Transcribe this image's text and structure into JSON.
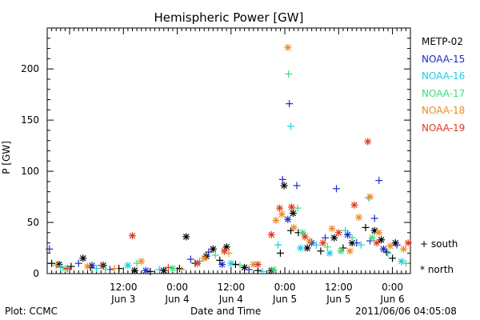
{
  "footer": {
    "left": "Plot: CCMC",
    "center": "Date and Time",
    "right": "2011/06/06 04:05:08"
  },
  "hemisphere_legend": {
    "south": "+ south",
    "north": "* north"
  },
  "chart_data": {
    "type": "scatter",
    "title": "Hemispheric Power [GW]",
    "xlabel": "Date and Time",
    "ylabel": "P [GW]",
    "xlim": [
      "2011-06-02T19:00",
      "2011-06-06T04:00"
    ],
    "ylim": [
      0,
      240
    ],
    "yticks": [
      0,
      50,
      100,
      150,
      200
    ],
    "xticks": [
      {
        "x": "2011-06-03T12:00",
        "label1": "12:00",
        "label2": "Jun 3"
      },
      {
        "x": "2011-06-04T00:00",
        "label1": "0:00",
        "label2": "Jun 4"
      },
      {
        "x": "2011-06-04T12:00",
        "label1": "12:00",
        "label2": "Jun 4"
      },
      {
        "x": "2011-06-05T00:00",
        "label1": "0:00",
        "label2": "Jun 5"
      },
      {
        "x": "2011-06-05T12:00",
        "label1": "12:00",
        "label2": "Jun 5"
      },
      {
        "x": "2011-06-06T00:00",
        "label1": "0:00",
        "label2": "Jun 6"
      }
    ],
    "grid": false,
    "legend_position": "right",
    "series": [
      {
        "name": "METP-02",
        "color": "#000000",
        "points": [
          [
            "2011-06-02T20:00",
            10,
            "+"
          ],
          [
            "2011-06-02T21:40",
            9,
            "*"
          ],
          [
            "2011-06-03T00:20",
            7,
            "+"
          ],
          [
            "2011-06-03T03:00",
            15,
            "*"
          ],
          [
            "2011-06-03T04:40",
            6,
            "+"
          ],
          [
            "2011-06-03T07:30",
            8,
            "*"
          ],
          [
            "2011-06-03T11:00",
            5,
            "+"
          ],
          [
            "2011-06-03T14:30",
            3,
            "*"
          ],
          [
            "2011-06-03T18:00",
            2,
            "+"
          ],
          [
            "2011-06-03T21:00",
            3,
            "*"
          ],
          [
            "2011-06-04T00:30",
            5,
            "+"
          ],
          [
            "2011-06-04T02:00",
            36,
            "*"
          ],
          [
            "2011-06-04T04:00",
            10,
            "+"
          ],
          [
            "2011-06-04T06:30",
            17,
            "*"
          ],
          [
            "2011-06-04T08:00",
            24,
            "*"
          ],
          [
            "2011-06-04T09:30",
            13,
            "+"
          ],
          [
            "2011-06-04T11:00",
            26,
            "*"
          ],
          [
            "2011-06-04T13:00",
            9,
            "+"
          ],
          [
            "2011-06-04T15:00",
            6,
            "*"
          ],
          [
            "2011-06-04T18:00",
            3,
            "+"
          ],
          [
            "2011-06-04T21:00",
            3,
            "*"
          ],
          [
            "2011-06-04T23:00",
            20,
            "+"
          ],
          [
            "2011-06-04T23:50",
            86,
            "*"
          ],
          [
            "2011-06-05T01:20",
            42,
            "+"
          ],
          [
            "2011-06-05T01:50",
            59,
            "*"
          ],
          [
            "2011-06-05T03:00",
            40,
            "+"
          ],
          [
            "2011-06-05T05:00",
            25,
            "*"
          ],
          [
            "2011-06-05T08:00",
            22,
            "+"
          ],
          [
            "2011-06-05T11:00",
            35,
            "*"
          ],
          [
            "2011-06-05T13:00",
            25,
            "+"
          ],
          [
            "2011-06-05T15:00",
            30,
            "*"
          ],
          [
            "2011-06-05T18:00",
            45,
            "+"
          ],
          [
            "2011-06-05T20:00",
            42,
            "*"
          ],
          [
            "2011-06-05T21:30",
            33,
            "*"
          ],
          [
            "2011-06-05T22:40",
            21,
            "+"
          ],
          [
            "2011-06-06T00:00",
            15,
            "+"
          ],
          [
            "2011-06-06T00:40",
            30,
            "*"
          ]
        ]
      },
      {
        "name": "NOAA-15",
        "color": "#1c2bc9",
        "points": [
          [
            "2011-06-02T19:30",
            24,
            "+"
          ],
          [
            "2011-06-03T02:00",
            10,
            "+"
          ],
          [
            "2011-06-03T05:00",
            8,
            "*"
          ],
          [
            "2011-06-03T09:00",
            4,
            "+"
          ],
          [
            "2011-06-03T17:00",
            3,
            "*"
          ],
          [
            "2011-06-04T03:00",
            14,
            "+"
          ],
          [
            "2011-06-04T07:00",
            21,
            "+"
          ],
          [
            "2011-06-04T10:00",
            9,
            "*"
          ],
          [
            "2011-06-04T16:00",
            4,
            "+"
          ],
          [
            "2011-06-04T23:30",
            92,
            "+"
          ],
          [
            "2011-06-05T00:40",
            53,
            "*"
          ],
          [
            "2011-06-05T01:00",
            166,
            "+"
          ],
          [
            "2011-06-05T02:40",
            86,
            "+"
          ],
          [
            "2011-06-05T06:00",
            30,
            "*"
          ],
          [
            "2011-06-05T09:00",
            35,
            "+"
          ],
          [
            "2011-06-05T11:30",
            83,
            "+"
          ],
          [
            "2011-06-05T14:00",
            38,
            "*"
          ],
          [
            "2011-06-05T16:00",
            30,
            "+"
          ],
          [
            "2011-06-05T19:00",
            32,
            "+"
          ],
          [
            "2011-06-05T20:00",
            54,
            "+"
          ],
          [
            "2011-06-05T21:00",
            91,
            "+"
          ],
          [
            "2011-06-05T22:00",
            24,
            "*"
          ],
          [
            "2011-06-06T01:00",
            28,
            "+"
          ]
        ]
      },
      {
        "name": "NOAA-16",
        "color": "#1ecbe6",
        "points": [
          [
            "2011-06-02T22:00",
            6,
            "+"
          ],
          [
            "2011-06-03T06:00",
            5,
            "+"
          ],
          [
            "2011-06-03T13:00",
            8,
            "*"
          ],
          [
            "2011-06-03T20:00",
            4,
            "+"
          ],
          [
            "2011-06-04T05:00",
            12,
            "+"
          ],
          [
            "2011-06-04T12:00",
            10,
            "*"
          ],
          [
            "2011-06-04T19:00",
            2,
            "+"
          ],
          [
            "2011-06-04T22:30",
            28,
            "+"
          ],
          [
            "2011-06-05T01:20",
            144,
            "+"
          ],
          [
            "2011-06-05T03:30",
            25,
            "*"
          ],
          [
            "2011-06-05T07:00",
            28,
            "+"
          ],
          [
            "2011-06-05T10:00",
            20,
            "*"
          ],
          [
            "2011-06-05T13:30",
            42,
            "+"
          ],
          [
            "2011-06-05T17:00",
            28,
            "+"
          ],
          [
            "2011-06-05T18:40",
            74,
            "+"
          ],
          [
            "2011-06-05T23:00",
            20,
            "+"
          ],
          [
            "2011-06-06T02:00",
            12,
            "*"
          ]
        ]
      },
      {
        "name": "NOAA-17",
        "color": "#3ddc7a",
        "points": [
          [
            "2011-06-02T23:00",
            5,
            "*"
          ],
          [
            "2011-06-03T08:00",
            4,
            "+"
          ],
          [
            "2011-06-03T15:00",
            10,
            "+"
          ],
          [
            "2011-06-03T23:00",
            5,
            "*"
          ],
          [
            "2011-06-04T08:30",
            18,
            "+"
          ],
          [
            "2011-06-04T14:00",
            8,
            "+"
          ],
          [
            "2011-06-04T21:30",
            4,
            "*"
          ],
          [
            "2011-06-05T00:50",
            195,
            "+"
          ],
          [
            "2011-06-05T02:50",
            64,
            "+"
          ],
          [
            "2011-06-05T04:00",
            40,
            "*"
          ],
          [
            "2011-06-05T09:30",
            26,
            "+"
          ],
          [
            "2011-06-05T12:30",
            22,
            "*"
          ],
          [
            "2011-06-05T15:00",
            35,
            "+"
          ],
          [
            "2011-06-05T19:30",
            35,
            "*"
          ],
          [
            "2011-06-06T03:00",
            10,
            "+"
          ]
        ]
      },
      {
        "name": "NOAA-18",
        "color": "#f08a1e",
        "points": [
          [
            "2011-06-02T21:00",
            8,
            "+"
          ],
          [
            "2011-06-03T04:00",
            7,
            "*"
          ],
          [
            "2011-06-03T10:00",
            5,
            "+"
          ],
          [
            "2011-06-03T16:00",
            12,
            "*"
          ],
          [
            "2011-06-04T01:00",
            4,
            "+"
          ],
          [
            "2011-06-04T06:00",
            15,
            "*"
          ],
          [
            "2011-06-04T11:30",
            20,
            "+"
          ],
          [
            "2011-06-04T17:00",
            9,
            "*"
          ],
          [
            "2011-06-04T22:00",
            52,
            "*"
          ],
          [
            "2011-06-04T23:20",
            58,
            "*"
          ],
          [
            "2011-06-05T00:40",
            221,
            "*"
          ],
          [
            "2011-06-05T02:00",
            45,
            "*"
          ],
          [
            "2011-06-05T05:30",
            32,
            "*"
          ],
          [
            "2011-06-05T10:30",
            44,
            "*"
          ],
          [
            "2011-06-05T14:30",
            22,
            "*"
          ],
          [
            "2011-06-05T16:30",
            55,
            "*"
          ],
          [
            "2011-06-05T19:00",
            75,
            "*"
          ],
          [
            "2011-06-05T21:00",
            40,
            "*"
          ],
          [
            "2011-06-05T23:30",
            27,
            "*"
          ],
          [
            "2011-06-06T02:30",
            24,
            "*"
          ]
        ]
      },
      {
        "name": "NOAA-19",
        "color": "#e0371f",
        "points": [
          [
            "2011-06-02T23:30",
            5,
            "+"
          ],
          [
            "2011-06-03T07:00",
            8,
            "+"
          ],
          [
            "2011-06-03T14:00",
            37,
            "*"
          ],
          [
            "2011-06-03T22:00",
            6,
            "+"
          ],
          [
            "2011-06-04T04:30",
            10,
            "*"
          ],
          [
            "2011-06-04T10:30",
            22,
            "*"
          ],
          [
            "2011-06-04T18:00",
            9,
            "*"
          ],
          [
            "2011-06-04T21:00",
            38,
            "*"
          ],
          [
            "2011-06-04T22:50",
            64,
            "*"
          ],
          [
            "2011-06-05T01:30",
            65,
            "*"
          ],
          [
            "2011-06-05T04:30",
            36,
            "*"
          ],
          [
            "2011-06-05T08:30",
            30,
            "*"
          ],
          [
            "2011-06-05T12:00",
            40,
            "*"
          ],
          [
            "2011-06-05T15:30",
            67,
            "*"
          ],
          [
            "2011-06-05T18:30",
            129,
            "*"
          ],
          [
            "2011-06-05T20:30",
            30,
            "*"
          ],
          [
            "2011-06-06T03:30",
            30,
            "*"
          ]
        ]
      }
    ]
  }
}
